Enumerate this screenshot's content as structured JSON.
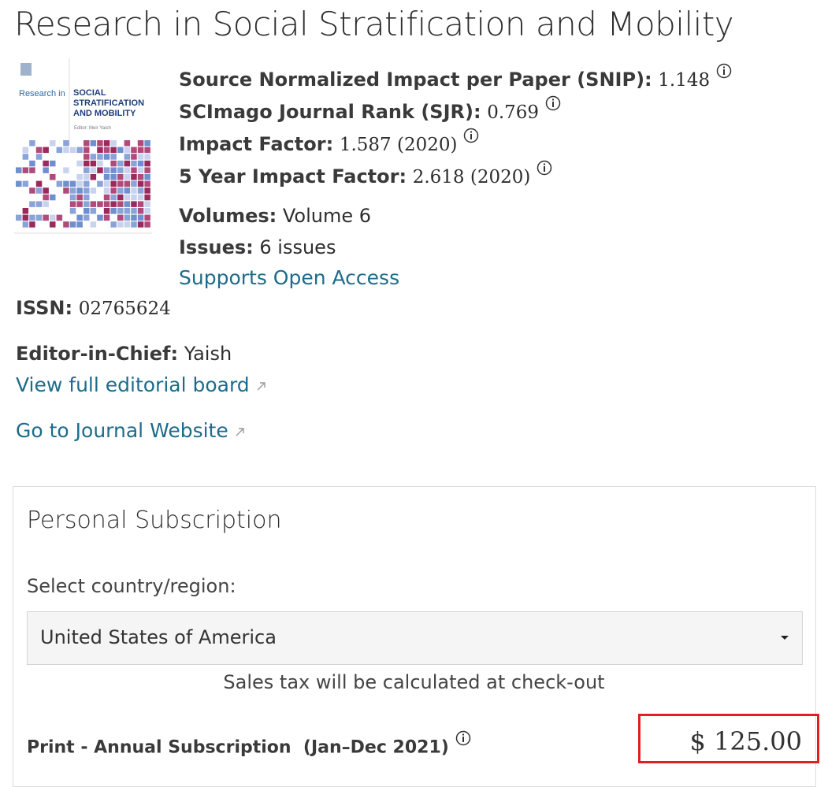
{
  "header": {
    "title": "Research in Social Stratification and Mobility"
  },
  "cover": {
    "series_line": "Research in",
    "journal_name": "SOCIAL STRATIFICATION AND MOBILITY",
    "editor_line": "Editor: Meir Yaish"
  },
  "metrics": [
    {
      "label": "Source Normalized Impact per Paper (SNIP):",
      "value": "1.148"
    },
    {
      "label": "SCImago Journal Rank (SJR):",
      "value": "0.769"
    },
    {
      "label": "Impact Factor:",
      "value": "1.587 (2020)"
    },
    {
      "label": "5 Year Impact Factor:",
      "value": "2.618 (2020)"
    }
  ],
  "details": [
    {
      "label": "Volumes:",
      "value": "Volume 6"
    },
    {
      "label": "Issues:",
      "value": "6 issues"
    }
  ],
  "open_access": "Supports Open Access",
  "issn": {
    "label": "ISSN:",
    "value": "02765624"
  },
  "editor": {
    "label": "Editor-in-Chief:",
    "value": "Yaish"
  },
  "links": {
    "editorial_board": "View full editorial board",
    "journal_website": "Go to Journal Website"
  },
  "subscription": {
    "title": "Personal Subscription",
    "country_label": "Select country/region:",
    "country": "United States of America",
    "tax_note": "Sales tax will be calculated at check-out",
    "product": "Print - Annual Subscription",
    "period": "(Jan–Dec 2021)",
    "price": "$ 125.00"
  }
}
